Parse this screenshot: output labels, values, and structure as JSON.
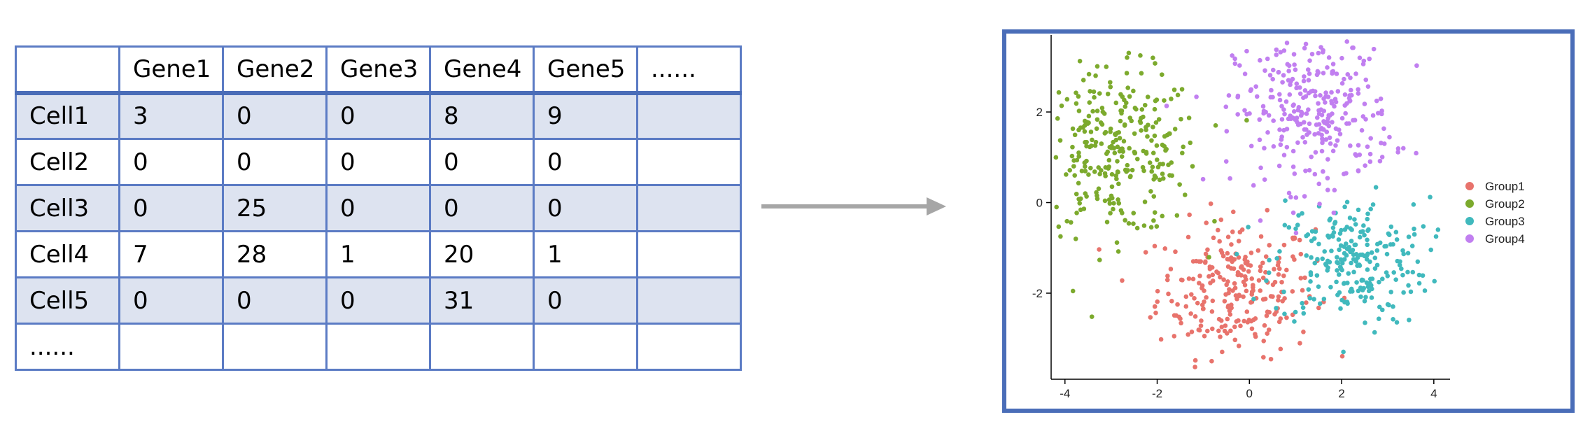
{
  "matrix": {
    "header": [
      "",
      "Gene1",
      "Gene2",
      "Gene3",
      "Gene4",
      "Gene5",
      "......"
    ],
    "rows": [
      [
        "Cell1",
        "3",
        "0",
        "0",
        "8",
        "9",
        ""
      ],
      [
        "Cell2",
        "0",
        "0",
        "0",
        "0",
        "0",
        ""
      ],
      [
        "Cell3",
        "0",
        "25",
        "0",
        "0",
        "0",
        ""
      ],
      [
        "Cell4",
        "7",
        "28",
        "1",
        "20",
        "1",
        ""
      ],
      [
        "Cell5",
        "0",
        "0",
        "0",
        "31",
        "0",
        ""
      ],
      [
        "......",
        "",
        "",
        "",
        "",
        "",
        ""
      ]
    ],
    "shaded_rows": [
      0,
      2,
      4
    ]
  },
  "colors": {
    "table_border": "#5b7bc4",
    "shade": "#dde3f0",
    "arrow": "#a6a6a6",
    "frame": "#4a6db8",
    "Group1": "#e8736c",
    "Group2": "#7caa2d",
    "Group3": "#40b9bd",
    "Group4": "#c17ff0"
  },
  "chart_data": {
    "type": "scatter",
    "xlim": [
      -4.3,
      4.2
    ],
    "ylim": [
      -3.9,
      3.7
    ],
    "xticks": [
      -4,
      -2,
      0,
      2,
      4
    ],
    "yticks": [
      -2,
      0,
      2
    ],
    "legend": "right",
    "series": [
      {
        "name": "Group1",
        "center": [
          -0.3,
          -1.9
        ],
        "spread": [
          0.85,
          0.75
        ],
        "n": 260
      },
      {
        "name": "Group2",
        "center": [
          -2.9,
          1.1
        ],
        "spread": [
          0.9,
          0.9
        ],
        "n": 300
      },
      {
        "name": "Group3",
        "center": [
          2.2,
          -1.3
        ],
        "spread": [
          0.85,
          0.7
        ],
        "n": 240
      },
      {
        "name": "Group4",
        "center": [
          1.4,
          2.0
        ],
        "spread": [
          0.85,
          0.85
        ],
        "n": 300
      }
    ]
  }
}
